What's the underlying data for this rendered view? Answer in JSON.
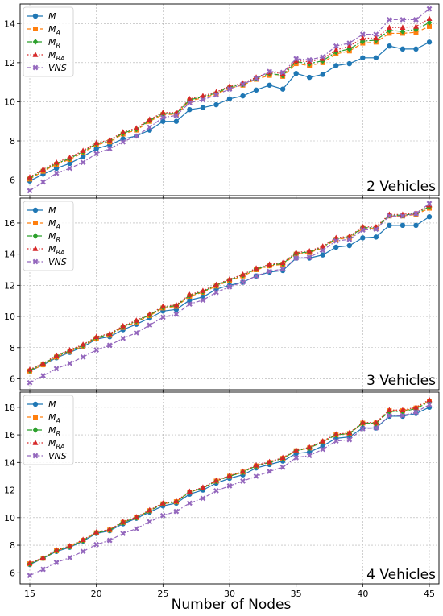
{
  "figure": {
    "xlabel": "Number of Nodes"
  },
  "styles": {
    "M": {
      "color": "#1f77b4",
      "marker": "circle",
      "dash": ""
    },
    "MA": {
      "color": "#ff7f0e",
      "marker": "square",
      "dash": "5,3"
    },
    "MR": {
      "color": "#2ca02c",
      "marker": "diamond",
      "dash": "6,2,2,2"
    },
    "MRA": {
      "color": "#d62728",
      "marker": "triangle",
      "dash": "1.5,2"
    },
    "VNS": {
      "color": "#9467bd",
      "marker": "x",
      "dash": "5,2,1.5,2"
    }
  },
  "chart_data": [
    {
      "type": "line",
      "panel_label": "2 Vehicles",
      "x": [
        15,
        16,
        17,
        18,
        19,
        20,
        21,
        22,
        23,
        24,
        25,
        26,
        27,
        28,
        29,
        30,
        31,
        32,
        33,
        34,
        35,
        36,
        37,
        38,
        39,
        40,
        41,
        42,
        43,
        44,
        45
      ],
      "xticks": [
        15,
        20,
        25,
        30,
        35,
        40,
        45
      ],
      "ylim": [
        5.2,
        15.0
      ],
      "yticks": [
        6,
        8,
        10,
        12,
        14
      ],
      "legend_position": "top-left",
      "series": [
        {
          "key": "M",
          "name": "M",
          "sub": "",
          "values": [
            5.95,
            6.3,
            6.6,
            6.85,
            7.2,
            7.6,
            7.8,
            8.1,
            8.25,
            8.55,
            9.0,
            9.0,
            9.6,
            9.7,
            9.85,
            10.15,
            10.3,
            10.6,
            10.85,
            10.65,
            11.45,
            11.25,
            11.4,
            11.85,
            11.95,
            12.25,
            12.25,
            12.85,
            12.7,
            12.7,
            13.05
          ]
        },
        {
          "key": "MA",
          "name": "M",
          "sub": "A",
          "values": [
            6.05,
            6.45,
            6.8,
            7.05,
            7.4,
            7.8,
            7.95,
            8.35,
            8.55,
            9.0,
            9.35,
            9.35,
            10.05,
            10.2,
            10.4,
            10.7,
            10.85,
            11.15,
            11.35,
            11.3,
            11.95,
            11.85,
            12.0,
            12.45,
            12.6,
            13.0,
            13.05,
            13.5,
            13.5,
            13.55,
            13.85
          ]
        },
        {
          "key": "MR",
          "name": "M",
          "sub": "R",
          "values": [
            6.1,
            6.5,
            6.85,
            7.1,
            7.45,
            7.85,
            8.0,
            8.4,
            8.6,
            9.05,
            9.4,
            9.4,
            10.1,
            10.25,
            10.45,
            10.75,
            10.9,
            11.2,
            11.45,
            11.35,
            12.05,
            11.95,
            12.1,
            12.55,
            12.7,
            13.1,
            13.15,
            13.65,
            13.6,
            13.7,
            14.05
          ]
        },
        {
          "key": "MRA",
          "name": "M",
          "sub": "RA",
          "values": [
            6.15,
            6.55,
            6.9,
            7.15,
            7.5,
            7.9,
            8.05,
            8.45,
            8.65,
            9.1,
            9.45,
            9.45,
            10.15,
            10.3,
            10.5,
            10.8,
            10.95,
            11.25,
            11.5,
            11.45,
            12.1,
            12.05,
            12.2,
            12.65,
            12.85,
            13.25,
            13.25,
            13.8,
            13.8,
            13.85,
            14.25
          ]
        },
        {
          "key": "VNS",
          "name": "VNS",
          "sub": "",
          "values": [
            5.45,
            5.9,
            6.35,
            6.6,
            6.9,
            7.35,
            7.6,
            7.95,
            8.25,
            8.7,
            9.2,
            9.3,
            9.95,
            10.1,
            10.35,
            10.65,
            10.9,
            11.2,
            11.55,
            11.5,
            12.2,
            12.15,
            12.3,
            12.85,
            13.0,
            13.45,
            13.45,
            14.2,
            14.2,
            14.2,
            14.75
          ]
        }
      ]
    },
    {
      "type": "line",
      "panel_label": "3 Vehicles",
      "x": [
        15,
        16,
        17,
        18,
        19,
        20,
        21,
        22,
        23,
        24,
        25,
        26,
        27,
        28,
        29,
        30,
        31,
        32,
        33,
        34,
        35,
        36,
        37,
        38,
        39,
        40,
        41,
        42,
        43,
        44,
        45
      ],
      "xticks": [
        15,
        20,
        25,
        30,
        35,
        40,
        45
      ],
      "ylim": [
        5.3,
        17.6
      ],
      "yticks": [
        6,
        8,
        10,
        12,
        14,
        16
      ],
      "legend_position": "top-left",
      "series": [
        {
          "key": "M",
          "name": "M",
          "sub": "",
          "values": [
            6.5,
            6.9,
            7.35,
            7.7,
            8.05,
            8.55,
            8.7,
            9.15,
            9.5,
            9.9,
            10.35,
            10.45,
            11.05,
            11.25,
            11.75,
            12.0,
            12.2,
            12.6,
            12.85,
            12.95,
            13.75,
            13.75,
            13.95,
            14.45,
            14.55,
            15.05,
            15.1,
            15.85,
            15.85,
            15.85,
            16.4
          ]
        },
        {
          "key": "MA",
          "name": "M",
          "sub": "A",
          "values": [
            6.5,
            6.9,
            7.4,
            7.75,
            8.1,
            8.6,
            8.8,
            9.3,
            9.65,
            10.05,
            10.55,
            10.65,
            11.3,
            11.55,
            11.95,
            12.3,
            12.6,
            13.0,
            13.25,
            13.35,
            14.0,
            14.1,
            14.4,
            14.95,
            15.05,
            15.65,
            15.65,
            16.45,
            16.45,
            16.55,
            16.95
          ]
        },
        {
          "key": "MR",
          "name": "M",
          "sub": "R",
          "values": [
            6.55,
            6.95,
            7.45,
            7.8,
            8.15,
            8.65,
            8.85,
            9.35,
            9.7,
            10.1,
            10.6,
            10.7,
            11.35,
            11.6,
            12.0,
            12.35,
            12.65,
            13.05,
            13.3,
            13.4,
            14.05,
            14.15,
            14.45,
            15.0,
            15.1,
            15.7,
            15.7,
            16.5,
            16.5,
            16.6,
            17.05
          ]
        },
        {
          "key": "MRA",
          "name": "M",
          "sub": "RA",
          "values": [
            6.6,
            7.0,
            7.5,
            7.85,
            8.2,
            8.7,
            8.9,
            9.4,
            9.75,
            10.15,
            10.65,
            10.75,
            11.4,
            11.65,
            12.05,
            12.4,
            12.7,
            13.1,
            13.35,
            13.45,
            14.1,
            14.2,
            14.5,
            15.05,
            15.15,
            15.75,
            15.75,
            16.55,
            16.55,
            16.65,
            17.15
          ]
        },
        {
          "key": "VNS",
          "name": "VNS",
          "sub": "",
          "values": [
            5.75,
            6.2,
            6.65,
            7.0,
            7.4,
            7.85,
            8.15,
            8.6,
            8.95,
            9.45,
            9.95,
            10.15,
            10.8,
            11.05,
            11.55,
            11.9,
            12.2,
            12.6,
            12.9,
            13.05,
            13.75,
            13.8,
            14.25,
            14.85,
            14.95,
            15.55,
            15.6,
            16.45,
            16.45,
            16.6,
            17.25
          ]
        }
      ]
    },
    {
      "type": "line",
      "panel_label": "4 Vehicles",
      "x": [
        15,
        16,
        17,
        18,
        19,
        20,
        21,
        22,
        23,
        24,
        25,
        26,
        27,
        28,
        29,
        30,
        31,
        32,
        33,
        34,
        35,
        36,
        37,
        38,
        39,
        40,
        41,
        42,
        43,
        44,
        45
      ],
      "xticks": [
        15,
        20,
        25,
        30,
        35,
        40,
        45
      ],
      "ylim": [
        5.2,
        19.1
      ],
      "yticks": [
        6,
        8,
        10,
        12,
        14,
        16,
        18
      ],
      "legend_position": "top-left",
      "series": [
        {
          "key": "M",
          "name": "M",
          "sub": "",
          "values": [
            6.6,
            7.05,
            7.55,
            7.85,
            8.3,
            8.85,
            9.05,
            9.55,
            9.95,
            10.4,
            10.85,
            11.05,
            11.7,
            12.0,
            12.5,
            12.85,
            13.1,
            13.6,
            13.85,
            14.1,
            14.65,
            14.75,
            15.2,
            15.75,
            15.85,
            16.5,
            16.5,
            17.35,
            17.35,
            17.55,
            18.0
          ]
        },
        {
          "key": "MA",
          "name": "M",
          "sub": "A",
          "values": [
            6.65,
            7.05,
            7.6,
            7.9,
            8.35,
            8.9,
            9.1,
            9.65,
            10.0,
            10.5,
            11.0,
            11.15,
            11.85,
            12.15,
            12.65,
            13.0,
            13.3,
            13.75,
            14.0,
            14.3,
            14.85,
            15.05,
            15.5,
            16.0,
            16.1,
            16.85,
            16.85,
            17.75,
            17.75,
            17.95,
            18.45
          ]
        },
        {
          "key": "MR",
          "name": "M",
          "sub": "R",
          "values": [
            6.65,
            7.05,
            7.6,
            7.9,
            8.35,
            8.9,
            9.1,
            9.65,
            10.0,
            10.5,
            11.0,
            11.15,
            11.85,
            12.15,
            12.65,
            13.0,
            13.3,
            13.75,
            14.0,
            14.3,
            14.85,
            15.05,
            15.5,
            16.0,
            16.1,
            16.85,
            16.85,
            17.7,
            17.7,
            17.9,
            18.4
          ]
        },
        {
          "key": "MRA",
          "name": "M",
          "sub": "RA",
          "values": [
            6.7,
            7.1,
            7.65,
            7.95,
            8.4,
            8.95,
            9.15,
            9.7,
            10.05,
            10.55,
            11.05,
            11.2,
            11.9,
            12.2,
            12.7,
            13.05,
            13.35,
            13.8,
            14.05,
            14.35,
            14.9,
            15.1,
            15.55,
            16.05,
            16.15,
            16.9,
            16.9,
            17.8,
            17.8,
            18.0,
            18.55
          ]
        },
        {
          "key": "VNS",
          "name": "VNS",
          "sub": "",
          "values": [
            5.8,
            6.25,
            6.75,
            7.1,
            7.55,
            8.05,
            8.35,
            8.85,
            9.2,
            9.7,
            10.15,
            10.45,
            11.05,
            11.4,
            11.95,
            12.3,
            12.65,
            13.0,
            13.35,
            13.65,
            14.35,
            14.5,
            14.95,
            15.55,
            15.65,
            16.45,
            16.5,
            17.4,
            17.4,
            17.65,
            18.2
          ]
        }
      ]
    }
  ]
}
